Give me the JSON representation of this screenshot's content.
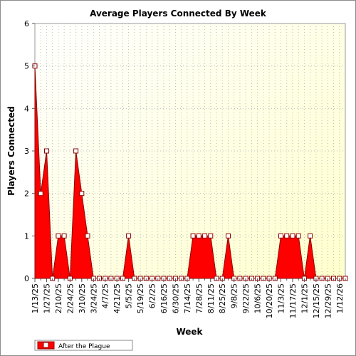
{
  "chart_data": {
    "type": "area",
    "title": "Average Players Connected By Week",
    "xlabel": "Week",
    "ylabel": "Players Connected",
    "ylim": [
      0,
      6
    ],
    "yticks": [
      0,
      1,
      2,
      3,
      4,
      5,
      6
    ],
    "xlim": [
      "2025-01-13",
      "2026-01-19"
    ],
    "x_tick_labels": [
      "1/13/25",
      "1/27/25",
      "2/10/25",
      "2/24/25",
      "3/10/25",
      "3/24/25",
      "4/7/25",
      "4/21/25",
      "5/5/25",
      "5/19/25",
      "6/2/25",
      "6/16/25",
      "6/30/25",
      "7/14/25",
      "7/28/25",
      "8/11/25",
      "8/25/25",
      "9/8/25",
      "9/22/25",
      "10/6/25",
      "10/20/25",
      "11/3/25",
      "11/17/25",
      "12/1/25",
      "12/15/25",
      "12/29/25",
      "1/12/26"
    ],
    "grid": true,
    "legend_position": "bottom-left",
    "series": [
      {
        "name": "After the Plague",
        "color": "#ff0000",
        "x": [
          "2025-01-13",
          "2025-01-20",
          "2025-01-27",
          "2025-02-03",
          "2025-02-10",
          "2025-02-17",
          "2025-02-24",
          "2025-03-03",
          "2025-03-10",
          "2025-03-17",
          "2025-03-24",
          "2025-03-31",
          "2025-04-07",
          "2025-04-14",
          "2025-04-21",
          "2025-04-28",
          "2025-05-05",
          "2025-05-12",
          "2025-05-19",
          "2025-05-26",
          "2025-06-02",
          "2025-06-09",
          "2025-06-16",
          "2025-06-23",
          "2025-06-30",
          "2025-07-07",
          "2025-07-14",
          "2025-07-21",
          "2025-07-28",
          "2025-08-04",
          "2025-08-11",
          "2025-08-18",
          "2025-08-25",
          "2025-09-01",
          "2025-09-08",
          "2025-09-15",
          "2025-09-22",
          "2025-09-29",
          "2025-10-06",
          "2025-10-13",
          "2025-10-20",
          "2025-10-27",
          "2025-11-03",
          "2025-11-10",
          "2025-11-17",
          "2025-11-24",
          "2025-12-01",
          "2025-12-08",
          "2025-12-15",
          "2025-12-22",
          "2025-12-29",
          "2026-01-05",
          "2026-01-12",
          "2026-01-19"
        ],
        "values": [
          5,
          2,
          3,
          0,
          1,
          1,
          0,
          3,
          2,
          1,
          0,
          0,
          0,
          0,
          0,
          0,
          1,
          0,
          0,
          0,
          0,
          0,
          0,
          0,
          0,
          0,
          0,
          1,
          1,
          1,
          1,
          0,
          0,
          1,
          0,
          0,
          0,
          0,
          0,
          0,
          0,
          0,
          1,
          1,
          1,
          1,
          0,
          1,
          0,
          0,
          0,
          0,
          0,
          0
        ]
      }
    ]
  }
}
